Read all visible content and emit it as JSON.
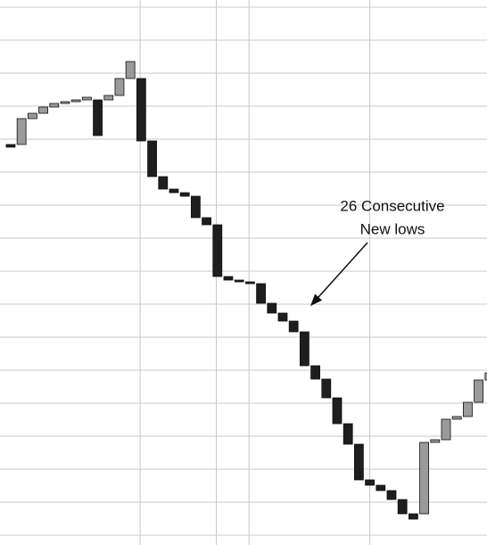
{
  "chart_data": {
    "type": "line_break",
    "annotation": [
      "26 Consecutive",
      "New lows"
    ],
    "x": [
      0,
      1,
      2,
      3,
      4,
      5,
      6,
      7,
      8,
      9,
      10,
      11,
      12,
      13,
      14,
      15,
      16,
      17,
      18,
      19,
      20,
      21,
      22,
      23,
      24,
      25,
      26,
      27,
      28,
      29,
      30,
      31,
      32,
      33,
      34,
      35,
      36,
      37,
      38,
      39,
      40,
      41,
      42,
      43,
      44
    ],
    "open": [
      449,
      449,
      478,
      484,
      491,
      495,
      497,
      499,
      499,
      499,
      504,
      523,
      523,
      453,
      413,
      399,
      395,
      391,
      367,
      359,
      301,
      297,
      295,
      293,
      271,
      260,
      251,
      239,
      201,
      186,
      165,
      136,
      113,
      73,
      67,
      61,
      51,
      35,
      35,
      115,
      118,
      141,
      144,
      160,
      185
    ],
    "close": [
      446,
      478,
      484,
      491,
      495,
      497,
      499,
      502,
      459,
      504,
      523,
      542,
      453,
      413,
      399,
      395,
      391,
      367,
      359,
      301,
      297,
      295,
      293,
      271,
      260,
      251,
      239,
      201,
      186,
      165,
      136,
      113,
      73,
      67,
      61,
      51,
      35,
      29,
      115,
      118,
      141,
      144,
      160,
      185,
      193
    ],
    "up_color": "#9a9a9a",
    "down_color": "#1e1e1e",
    "xlim": [
      -0.98,
      43.77
    ],
    "xticks": [
      11.9,
      18.9,
      21.9,
      33
    ],
    "ylim": [
      0,
      611
    ],
    "yticks": [
      603,
      566,
      529,
      492,
      455,
      418,
      381,
      344,
      307,
      270,
      233,
      196,
      159,
      122,
      85,
      48,
      11
    ],
    "grid": true
  }
}
